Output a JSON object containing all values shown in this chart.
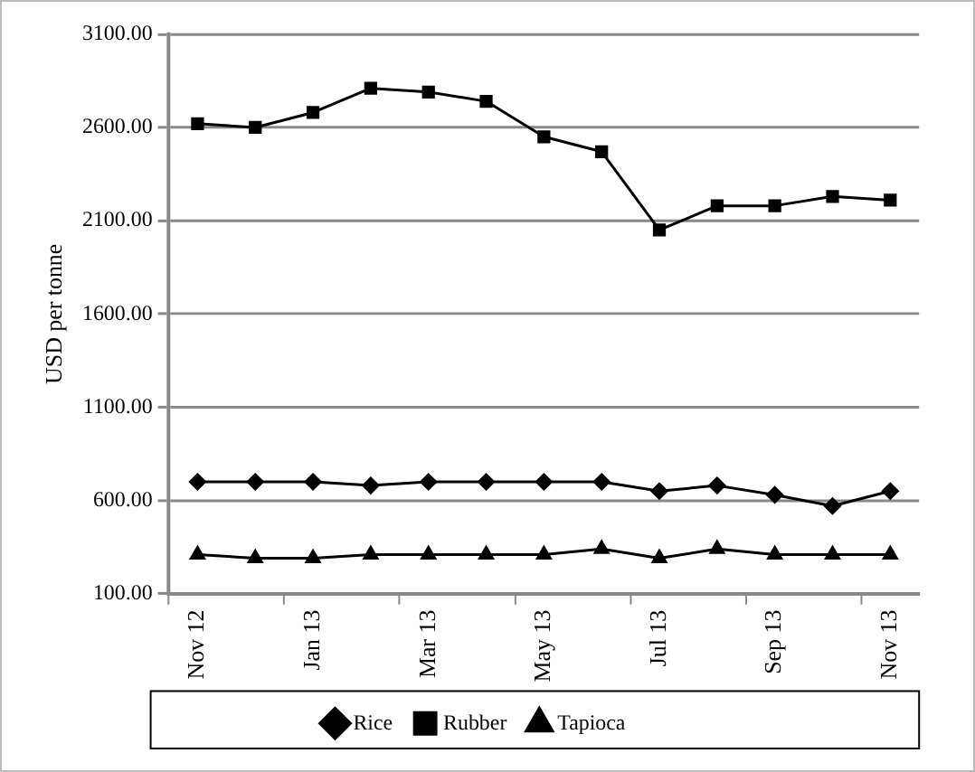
{
  "chart_data": {
    "type": "line",
    "ylabel": "USD per tonne",
    "categories": [
      "Nov 12",
      null,
      "Jan 13",
      null,
      "Mar 13",
      null,
      "May 13",
      null,
      "Jul 13",
      null,
      "Sep 13",
      null,
      "Nov 13"
    ],
    "series": [
      {
        "name": "Rice",
        "color": "#000000",
        "marker": "diamond",
        "values": [
          700,
          700,
          700,
          680,
          700,
          700,
          700,
          700,
          650,
          680,
          630,
          570,
          650
        ]
      },
      {
        "name": "Rubber",
        "color": "#000000",
        "marker": "square",
        "values": [
          2620,
          2600,
          2680,
          2810,
          2790,
          2740,
          2550,
          2470,
          2050,
          2180,
          2180,
          2230,
          2210
        ]
      },
      {
        "name": "Tapioca",
        "color": "#000000",
        "marker": "triangle",
        "values": [
          310,
          290,
          290,
          310,
          310,
          310,
          310,
          340,
          290,
          340,
          310,
          310,
          310
        ]
      }
    ],
    "ylim": [
      100,
      3100
    ],
    "yticks": [
      {
        "value": 100,
        "label": "100.00"
      },
      {
        "value": 600,
        "label": "600.00"
      },
      {
        "value": 1100,
        "label": "1100.00"
      },
      {
        "value": 1600,
        "label": "1600.00"
      },
      {
        "value": 2100,
        "label": "2100.00"
      },
      {
        "value": 2600,
        "label": "2600.00"
      },
      {
        "value": 3100,
        "label": "3100.00"
      }
    ],
    "grid": "y",
    "legend": "bottom",
    "line_style": "solid"
  }
}
